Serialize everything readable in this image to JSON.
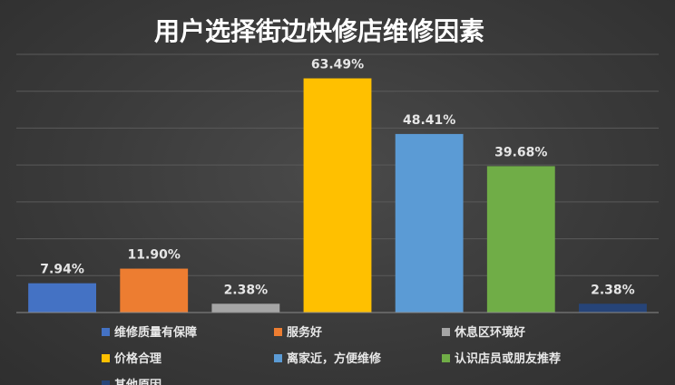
{
  "chart_data": {
    "type": "bar",
    "title": "用户选择街边快修店维修因素",
    "xlabel": "",
    "ylabel": "",
    "ylim": [
      0,
      70
    ],
    "grid": true,
    "legend_position": "bottom",
    "categories": [
      "维修质量有保障",
      "服务好",
      "休息区环境好",
      "价格合理",
      "离家近，方便维修",
      "认识店员或朋友推荐",
      "其他原因"
    ],
    "values": [
      7.94,
      11.9,
      2.38,
      63.49,
      48.41,
      39.68,
      2.38
    ],
    "value_labels": [
      "7.94%",
      "11.90%",
      "2.38%",
      "63.49%",
      "48.41%",
      "39.68%",
      "2.38%"
    ],
    "colors": [
      "#4472c4",
      "#ed7d31",
      "#a5a5a5",
      "#ffc000",
      "#5b9bd5",
      "#70ad47",
      "#264478"
    ]
  }
}
